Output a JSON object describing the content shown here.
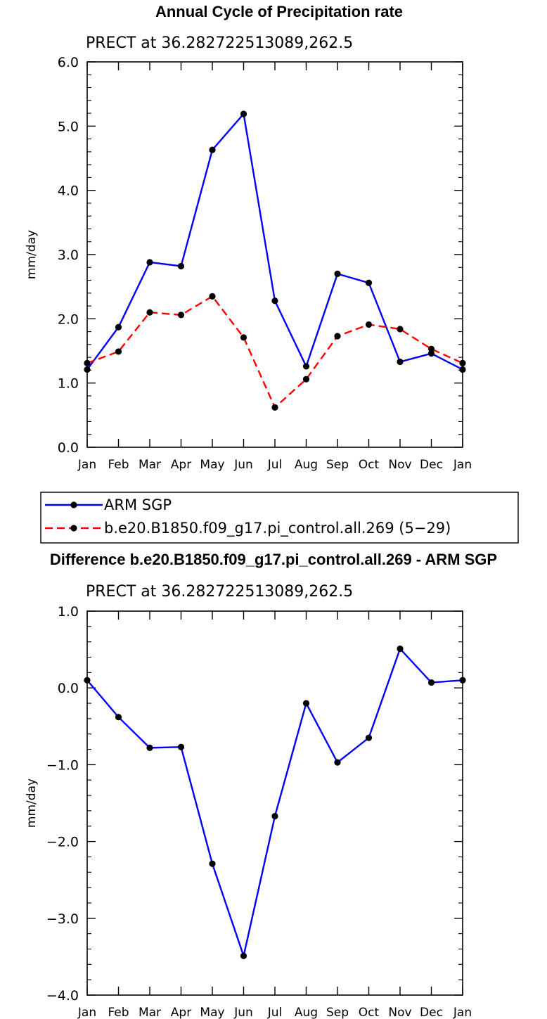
{
  "chart_data": [
    {
      "type": "line",
      "title": "Annual Cycle of Precipitation rate",
      "subtitle": "PRECT at 36.282722513089,262.5",
      "ylabel": "mm/day",
      "xlabel": "",
      "categories": [
        "Jan",
        "Feb",
        "Mar",
        "Apr",
        "May",
        "Jun",
        "Jul",
        "Aug",
        "Sep",
        "Oct",
        "Nov",
        "Dec",
        "Jan"
      ],
      "ylim": [
        0.0,
        6.0
      ],
      "yticks": [
        "0.0",
        "1.0",
        "2.0",
        "3.0",
        "4.0",
        "5.0",
        "6.0"
      ],
      "series": [
        {
          "name": "ARM SGP",
          "color": "#0000ff",
          "dash": "solid",
          "values": [
            1.21,
            1.87,
            2.88,
            2.82,
            4.63,
            5.19,
            2.28,
            1.26,
            2.7,
            2.56,
            1.33,
            1.46,
            1.21
          ]
        },
        {
          "name": "b.e20.B1850.f09_g17.pi_control.all.269 (5−29)",
          "color": "#ff0000",
          "dash": "dashed",
          "values": [
            1.31,
            1.49,
            2.1,
            2.06,
            2.35,
            1.71,
            0.62,
            1.06,
            1.73,
            1.91,
            1.84,
            1.53,
            1.31
          ]
        }
      ],
      "grid": false,
      "legend": "below"
    },
    {
      "type": "line",
      "title": "Difference b.e20.B1850.f09_g17.pi_control.all.269 - ARM SGP",
      "subtitle": "PRECT at 36.282722513089,262.5",
      "ylabel": "mm/day",
      "xlabel": "",
      "categories": [
        "Jan",
        "Feb",
        "Mar",
        "Apr",
        "May",
        "Jun",
        "Jul",
        "Aug",
        "Sep",
        "Oct",
        "Nov",
        "Dec",
        "Jan"
      ],
      "ylim": [
        -4.0,
        1.0
      ],
      "yticks": [
        "−4.0",
        "−3.0",
        "−2.0",
        "−1.0",
        "0.0",
        "1.0"
      ],
      "series": [
        {
          "name": "",
          "color": "#0000ff",
          "dash": "solid",
          "values": [
            0.1,
            -0.38,
            -0.78,
            -0.77,
            -2.29,
            -3.49,
            -1.67,
            -0.2,
            -0.97,
            -0.65,
            0.51,
            0.07,
            0.1
          ]
        }
      ],
      "grid": false,
      "legend": "none"
    }
  ]
}
